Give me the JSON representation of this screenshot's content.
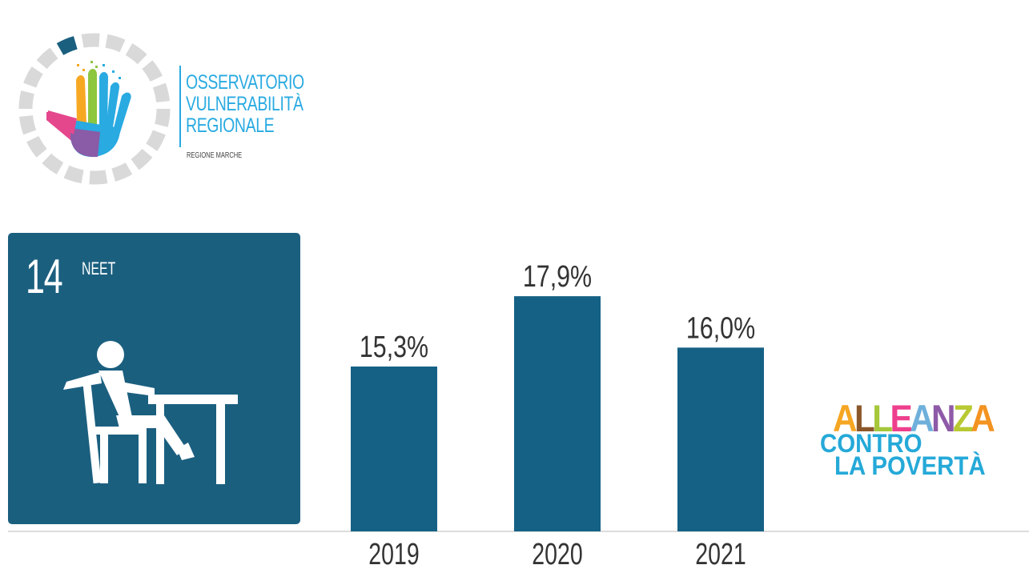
{
  "logo": {
    "line1": "OSSERVATORIO",
    "line2": "VULNERABILITÀ",
    "line3": "REGIONALE",
    "sub": "REGIONE MARCHE",
    "ring_colors": [
      "#d9d9d9",
      "#1b5f7f"
    ],
    "hand_colors": [
      "#f7a823",
      "#8dc63f",
      "#29aae1",
      "#e5478d",
      "#8a5ba6"
    ]
  },
  "neet_card": {
    "number": "14",
    "title": "NEET",
    "icon": "person-at-desk-icon",
    "bg_color": "#1b5f7f"
  },
  "chart_data": {
    "type": "bar",
    "categories": [
      "2019",
      "2020",
      "2021"
    ],
    "values": [
      15.3,
      17.9,
      16.0
    ],
    "value_labels": [
      "15,3%",
      "17,9%",
      "16,0%"
    ],
    "bar_color": "#156185",
    "title": "",
    "xlabel": "",
    "ylabel": "",
    "grid": false,
    "legend": "none"
  },
  "alleanza_logo": {
    "row1_letters": [
      {
        "ch": "A",
        "color": "#f5a623"
      },
      {
        "ch": "L",
        "color": "#8b572a"
      },
      {
        "ch": "L",
        "color": "#a5c739"
      },
      {
        "ch": "E",
        "color": "#ee3f8d"
      },
      {
        "ch": "A",
        "color": "#6fb0db"
      },
      {
        "ch": "N",
        "color": "#8e5aa7"
      },
      {
        "ch": "Z",
        "color": "#b8c932"
      },
      {
        "ch": "A",
        "color": "#f39321"
      }
    ],
    "row2": "CONTRO",
    "row3": "LA POVERTÀ"
  }
}
